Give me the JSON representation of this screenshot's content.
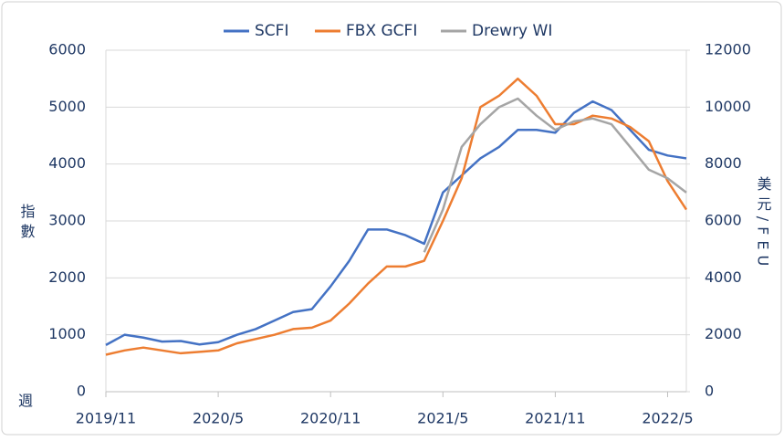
{
  "chart_data": {
    "type": "line",
    "y_label": "指數",
    "y2_label": "美元/FEU",
    "x_label": "週",
    "x": [
      "2019/11",
      "2019/12",
      "2020/1",
      "2020/2",
      "2020/3",
      "2020/4",
      "2020/5",
      "2020/6",
      "2020/7",
      "2020/8",
      "2020/9",
      "2020/10",
      "2020/11",
      "2020/12",
      "2021/1",
      "2021/2",
      "2021/3",
      "2021/4",
      "2021/5",
      "2021/6",
      "2021/7",
      "2021/8",
      "2021/9",
      "2021/10",
      "2021/11",
      "2021/12",
      "2022/1",
      "2022/2",
      "2022/3",
      "2022/4",
      "2022/5",
      "2022/6"
    ],
    "xlim": [
      "2019/11",
      "2022/6"
    ],
    "xticks": [
      "2019/11",
      "2020/5",
      "2020/11",
      "2021/5",
      "2021/11",
      "2022/5"
    ],
    "ylim": [
      0,
      6000
    ],
    "yticks": [
      0,
      1000,
      2000,
      3000,
      4000,
      5000,
      6000
    ],
    "y2lim": [
      0,
      12000
    ],
    "y2ticks": [
      0,
      2000,
      4000,
      6000,
      8000,
      10000,
      12000
    ],
    "grid": true,
    "legend": "top",
    "series": [
      {
        "name": "SCFI",
        "color": "#4472c4",
        "values": [
          820,
          1000,
          950,
          880,
          890,
          830,
          870,
          1000,
          1100,
          1250,
          1400,
          1450,
          1850,
          2300,
          2850,
          2850,
          2750,
          2600,
          3500,
          3800,
          4100,
          4300,
          4600,
          4600,
          4550,
          4900,
          5100,
          4950,
          4600,
          4250,
          4150,
          4100
        ]
      },
      {
        "name": "FBX GCFI",
        "color": "#ed7d31",
        "axis": "y2",
        "values": [
          1300,
          1450,
          1550,
          1450,
          1350,
          1400,
          1450,
          1700,
          1850,
          2000,
          2200,
          2250,
          2500,
          3100,
          3800,
          4400,
          4400,
          4600,
          6000,
          7500,
          10000,
          10400,
          11000,
          10400,
          9400,
          9400,
          9700,
          9600,
          9300,
          8800,
          7400,
          6400
        ]
      },
      {
        "name": "Drewry WI",
        "color": "#a5a5a5",
        "axis": "y2",
        "values": [
          null,
          null,
          null,
          null,
          null,
          null,
          null,
          null,
          null,
          null,
          null,
          null,
          null,
          null,
          null,
          null,
          null,
          4900,
          6400,
          8600,
          9400,
          10000,
          10300,
          9700,
          9200,
          9500,
          9600,
          9400,
          8600,
          7800,
          7500,
          7000
        ]
      }
    ]
  }
}
